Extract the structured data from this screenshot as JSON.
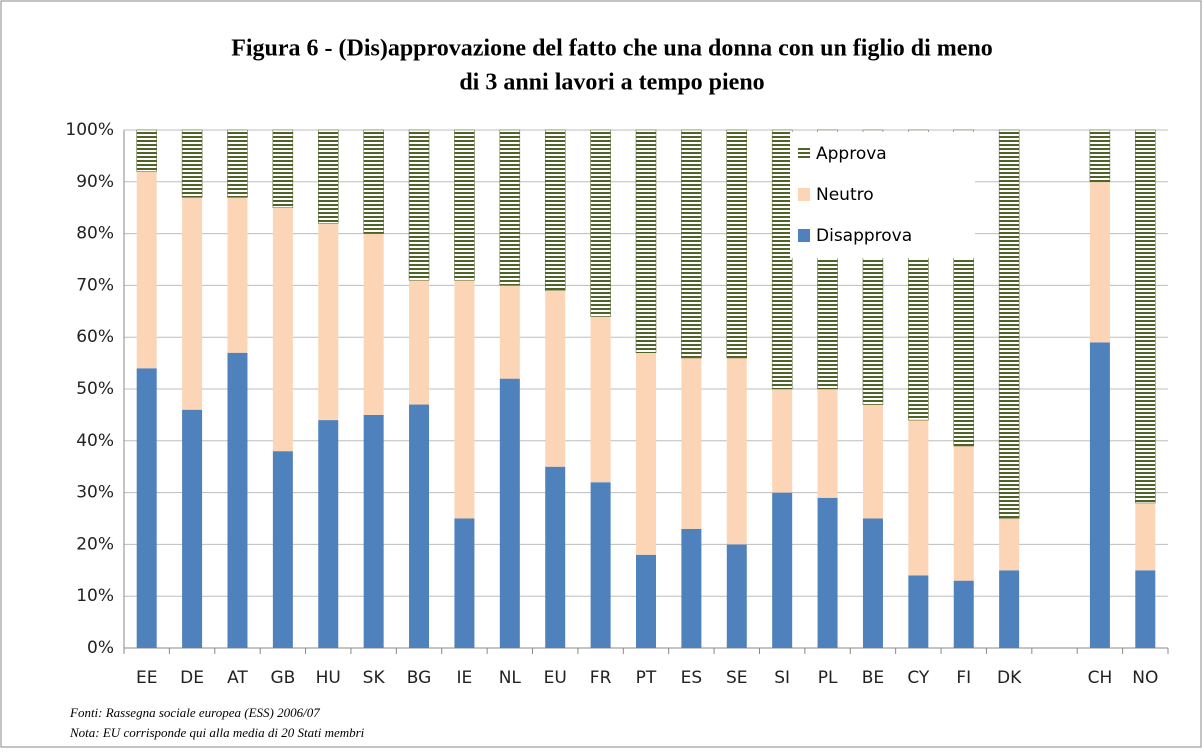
{
  "chart_data": {
    "type": "stacked_bar",
    "title": [
      "Figura 6 - (Dis)approvazione del fatto che una donna con un figlio di meno",
      "di 3 anni lavori a tempo pieno"
    ],
    "categories": [
      "EE",
      "DE",
      "AT",
      "GB",
      "HU",
      "SK",
      "BG",
      "IE",
      "NL",
      "EU",
      "FR",
      "PT",
      "ES",
      "SE",
      "SI",
      "PL",
      "BE",
      "CY",
      "FI",
      "DK",
      null,
      "CH",
      "NO"
    ],
    "series": [
      {
        "name": "Disapprova",
        "color": "#4f81bd",
        "pattern": "solid",
        "values": [
          54,
          46,
          57,
          38,
          44,
          45,
          47,
          25,
          52,
          35,
          32,
          18,
          23,
          20,
          30,
          29,
          25,
          14,
          13,
          15,
          null,
          59,
          15
        ]
      },
      {
        "name": "Neutro",
        "color": "#fbd5b5",
        "pattern": "solid",
        "values": [
          38,
          41,
          30,
          47,
          38,
          35,
          24,
          46,
          18,
          34,
          32,
          39,
          33,
          36,
          20,
          21,
          22,
          30,
          26,
          10,
          null,
          31,
          13
        ]
      },
      {
        "name": "Approva",
        "color": "#4f6228",
        "pattern": "stripes",
        "values": [
          8,
          13,
          13,
          15,
          18,
          20,
          29,
          29,
          30,
          31,
          36,
          43,
          44,
          44,
          50,
          50,
          53,
          56,
          61,
          75,
          null,
          10,
          72
        ]
      }
    ],
    "ylim": [
      0,
      100
    ],
    "yticks": [
      {
        "value": 0,
        "label": "0%"
      },
      {
        "value": 10,
        "label": "10%"
      },
      {
        "value": 20,
        "label": "20%"
      },
      {
        "value": 30,
        "label": "30%"
      },
      {
        "value": 40,
        "label": "40%"
      },
      {
        "value": 50,
        "label": "50%"
      },
      {
        "value": 60,
        "label": "60%"
      },
      {
        "value": 70,
        "label": "70%"
      },
      {
        "value": 80,
        "label": "80%"
      },
      {
        "value": 90,
        "label": "90%"
      },
      {
        "value": 100,
        "label": "100%"
      }
    ],
    "grid": true,
    "legend": "upper-right",
    "notes": [
      "Fonti: Rassegna sociale europea (ESS) 2006/07",
      "Nota: EU corrisponde qui alla media di 20 Stati membri"
    ]
  }
}
